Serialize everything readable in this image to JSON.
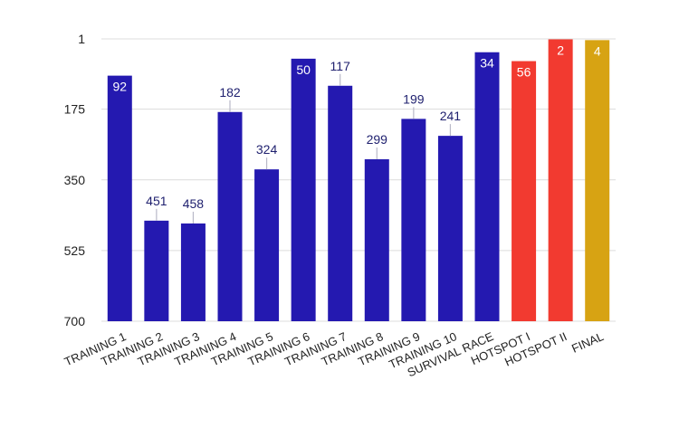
{
  "chart_data": {
    "type": "bar",
    "title": "",
    "xlabel": "",
    "ylabel": "",
    "y_inverted": true,
    "ylim": [
      1,
      700
    ],
    "y_ticks": [
      "1",
      "175",
      "350",
      "525",
      "700"
    ],
    "grid": true,
    "legend": "none",
    "categories": [
      "TRAINING 1",
      "TRAINING 2",
      "TRAINING 3",
      "TRAINING 4",
      "TRAINING 5",
      "TRAINING 6",
      "TRAINING 7",
      "TRAINING 8",
      "TRAINING 9",
      "TRAINING 10",
      "SURVIVAL RACE",
      "HOTSPOT I",
      "HOTSPOT II",
      "FINAL"
    ],
    "values": [
      92,
      451,
      458,
      182,
      324,
      50,
      117,
      299,
      199,
      241,
      34,
      56,
      2,
      4
    ],
    "labels": [
      "92",
      "451",
      "458",
      "182",
      "324",
      "50",
      "117",
      "299",
      "199",
      "241",
      "34",
      "56",
      "2",
      "4"
    ],
    "colors": [
      "#2419b0",
      "#2419b0",
      "#2419b0",
      "#2419b0",
      "#2419b0",
      "#2419b0",
      "#2419b0",
      "#2419b0",
      "#2419b0",
      "#2419b0",
      "#2419b0",
      "#f23a30",
      "#f23a30",
      "#d7a313"
    ],
    "gridline_color": "#dcdcdc",
    "axis_text_color": "#222222",
    "outside_label_color": "#1e1f6e",
    "inside_label_color": "#ffffff"
  }
}
